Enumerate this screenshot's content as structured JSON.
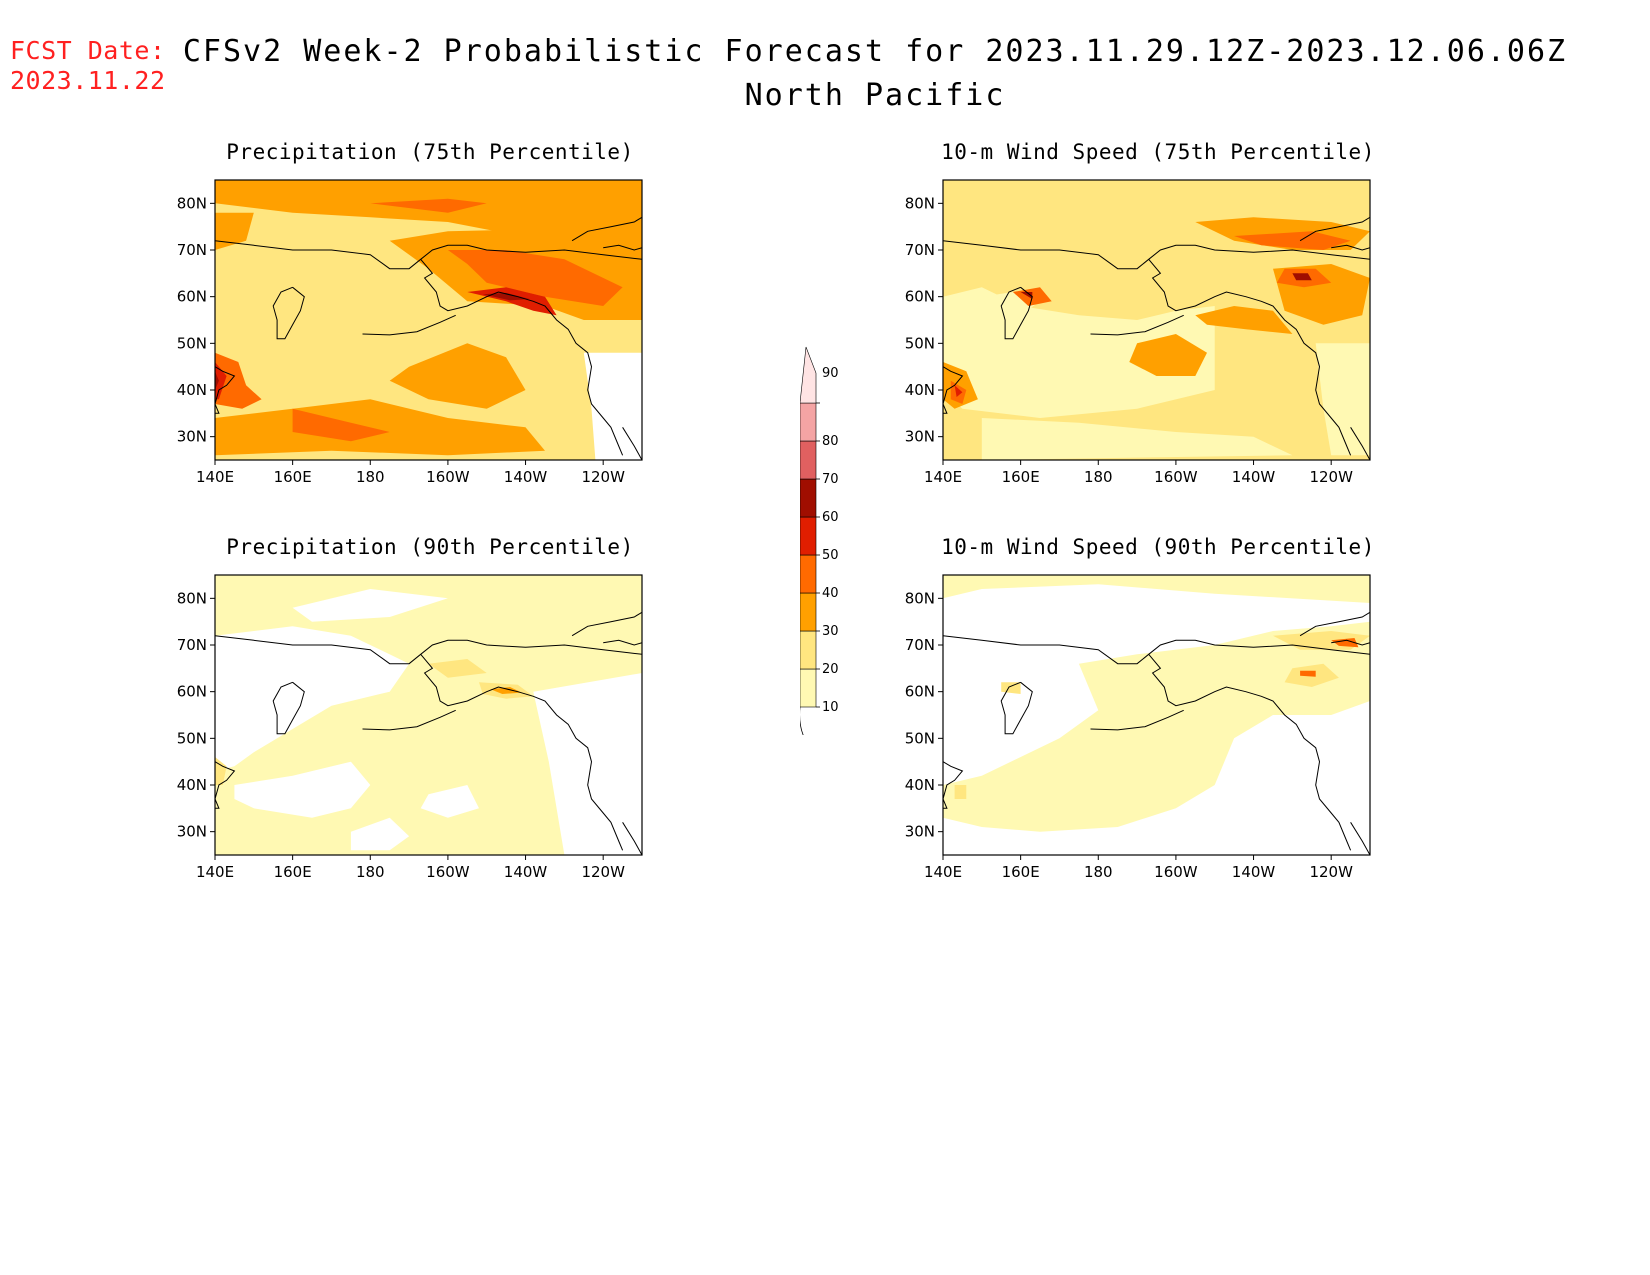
{
  "header": {
    "fcst_label": "FCST Date:",
    "fcst_date": "2023.11.22",
    "title": "CFSv2 Week-2 Probabilistic Forecast for 2023.11.29.12Z-2023.12.06.06Z",
    "subtitle": "North Pacific"
  },
  "colors": {
    "levels": [
      {
        "min": 10,
        "color": "#fff9b3"
      },
      {
        "min": 20,
        "color": "#ffe680"
      },
      {
        "min": 30,
        "color": "#ffa000"
      },
      {
        "min": 40,
        "color": "#ff6a00"
      },
      {
        "min": 50,
        "color": "#e01e00"
      },
      {
        "min": 60,
        "color": "#a00e00"
      },
      {
        "min": 70,
        "color": "#e06060"
      },
      {
        "min": 80,
        "color": "#f4a4a4"
      },
      {
        "min": 90,
        "color": "#ffe4e4"
      }
    ],
    "coast": "#000000"
  },
  "legend": {
    "labels": [
      "10",
      "20",
      "30",
      "40",
      "50",
      "60",
      "70",
      "80",
      "90"
    ]
  },
  "axes": {
    "lon_labels": [
      "140E",
      "160E",
      "180",
      "160W",
      "140W",
      "120W"
    ],
    "lat_labels": [
      "80N",
      "70N",
      "60N",
      "50N",
      "40N",
      "30N"
    ]
  },
  "panels": [
    {
      "id": "p75",
      "title": "Precipitation (75th Percentile)"
    },
    {
      "id": "w75",
      "title": "10-m Wind Speed (75th Percentile)"
    },
    {
      "id": "p90",
      "title": "Precipitation (90th Percentile)"
    },
    {
      "id": "w90",
      "title": "10-m Wind Speed (90th Percentile)"
    }
  ]
}
